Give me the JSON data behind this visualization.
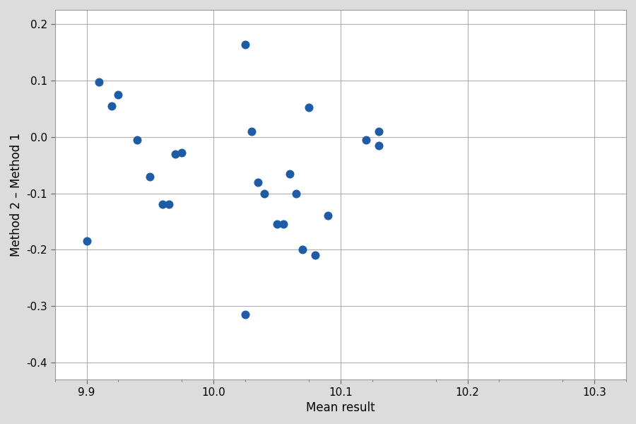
{
  "x": [
    9.9,
    9.95,
    9.91,
    9.92,
    9.925,
    9.94,
    9.96,
    9.965,
    9.97,
    9.975,
    10.025,
    10.03,
    10.035,
    10.04,
    10.05,
    10.055,
    10.06,
    10.065,
    10.025,
    10.07,
    10.075,
    10.12,
    10.13,
    10.08,
    10.09,
    10.13
  ],
  "y": [
    -0.185,
    -0.07,
    0.097,
    0.055,
    0.075,
    -0.005,
    -0.12,
    -0.12,
    -0.03,
    -0.028,
    0.163,
    0.01,
    -0.08,
    -0.1,
    -0.155,
    -0.155,
    -0.065,
    -0.1,
    -0.315,
    -0.2,
    0.052,
    -0.005,
    0.01,
    -0.21,
    -0.14,
    -0.015
  ],
  "dot_color": "#1f5ca6",
  "dot_size": 75,
  "xlabel": "Mean result",
  "ylabel": "Method 2 – Method 1",
  "xlim": [
    9.875,
    10.325
  ],
  "ylim": [
    -0.43,
    0.225
  ],
  "xtick_major": [
    9.9,
    10.0,
    10.1,
    10.2,
    10.3
  ],
  "yticks": [
    -0.4,
    -0.3,
    -0.2,
    -0.1,
    0.0,
    0.1,
    0.2
  ],
  "background_color": "#dcdcdc",
  "plot_background": "#ffffff",
  "grid_color": "#b0b0b0",
  "grid_linewidth": 0.8,
  "xlabel_fontsize": 12,
  "ylabel_fontsize": 12,
  "tick_fontsize": 11
}
